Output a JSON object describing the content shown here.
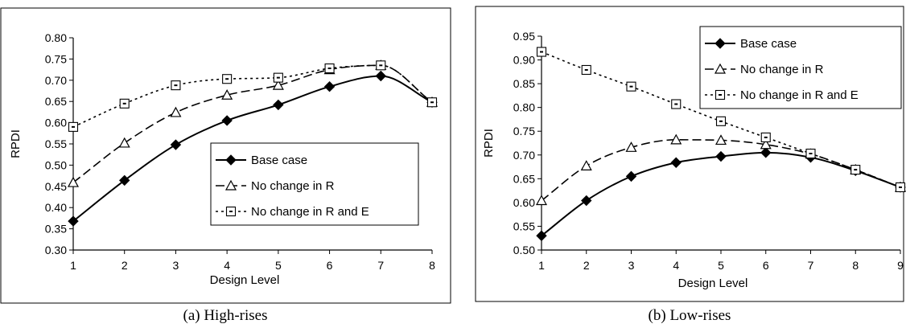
{
  "chart_data": [
    {
      "type": "line",
      "caption": "(a) High-rises",
      "xlabel": "Design Level",
      "ylabel": "RPDI",
      "x": [
        1,
        2,
        3,
        4,
        5,
        6,
        7,
        8
      ],
      "x_ticks": [
        "1",
        "2",
        "3",
        "4",
        "5",
        "6",
        "7",
        "8"
      ],
      "xlim": [
        1,
        8
      ],
      "ylim": [
        0.3,
        0.8
      ],
      "y_ticks": [
        "0.30",
        "0.35",
        "0.40",
        "0.45",
        "0.50",
        "0.55",
        "0.60",
        "0.65",
        "0.70",
        "0.75",
        "0.80"
      ],
      "grid": false,
      "legend_position": "bottom-right",
      "series": [
        {
          "name": "Base case",
          "values": [
            0.368,
            0.464,
            0.548,
            0.605,
            0.642,
            0.685,
            0.71,
            0.648
          ],
          "marker": "diamond",
          "dash": "solid",
          "color": "#000000"
        },
        {
          "name": "No change in R",
          "values": [
            0.459,
            0.552,
            0.624,
            0.665,
            0.688,
            0.725,
            0.735,
            0.648
          ],
          "marker": "triangle",
          "dash": "long-dash",
          "color": "#000000"
        },
        {
          "name": "No change in R and E",
          "values": [
            0.59,
            0.645,
            0.688,
            0.703,
            0.706,
            0.728,
            0.735,
            0.648
          ],
          "marker": "square",
          "dash": "dotted",
          "color": "#000000"
        }
      ]
    },
    {
      "type": "line",
      "caption": "(b) Low-rises",
      "xlabel": "Design Level",
      "ylabel": "RPDI",
      "x": [
        1,
        2,
        3,
        4,
        5,
        6,
        7,
        8,
        9
      ],
      "x_ticks": [
        "1",
        "2",
        "3",
        "4",
        "5",
        "6",
        "7",
        "8",
        "9"
      ],
      "xlim": [
        1,
        9
      ],
      "ylim": [
        0.5,
        0.95
      ],
      "y_ticks": [
        "0.50",
        "0.55",
        "0.60",
        "0.65",
        "0.70",
        "0.75",
        "0.80",
        "0.85",
        "0.90",
        "0.95"
      ],
      "grid": false,
      "legend_position": "top-right",
      "series": [
        {
          "name": "Base case",
          "values": [
            0.53,
            0.604,
            0.655,
            0.684,
            0.697,
            0.705,
            0.695,
            0.667,
            0.632
          ],
          "marker": "diamond",
          "dash": "solid",
          "color": "#000000"
        },
        {
          "name": "No change in R",
          "values": [
            0.604,
            0.677,
            0.716,
            0.732,
            0.731,
            0.722,
            0.702,
            0.669,
            0.632
          ],
          "marker": "triangle",
          "dash": "long-dash",
          "color": "#000000"
        },
        {
          "name": "No change in R and E",
          "values": [
            0.917,
            0.879,
            0.844,
            0.807,
            0.771,
            0.737,
            0.703,
            0.669,
            0.632
          ],
          "marker": "square",
          "dash": "dotted",
          "color": "#000000"
        }
      ]
    }
  ]
}
